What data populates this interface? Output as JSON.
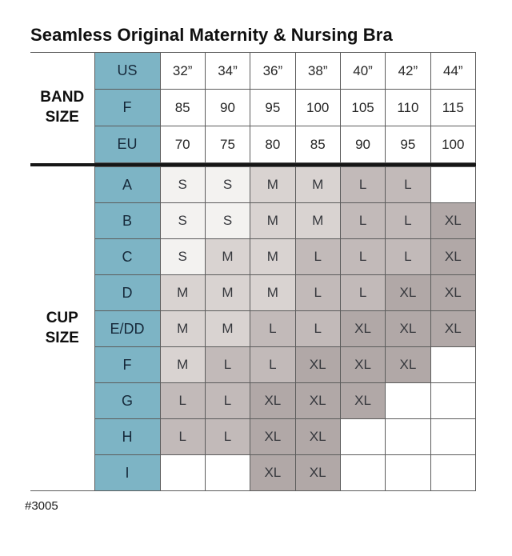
{
  "title": "Seamless Original Maternity & Nursing Bra",
  "product_code": "#3005",
  "colors": {
    "header_teal": "#7db4c5",
    "size_S": "#f3f2f0",
    "size_M": "#d9d3d1",
    "size_L": "#c2bab9",
    "size_XL": "#b1a8a7",
    "empty_cell": "#ffffff",
    "grid_line": "#5c5c5c",
    "section_divider": "#161616",
    "header_text": "#16293a"
  },
  "band_section": {
    "label": "BAND SIZE",
    "rows": [
      {
        "header": "US",
        "values": [
          "32”",
          "34”",
          "36”",
          "38”",
          "40”",
          "42”",
          "44”"
        ]
      },
      {
        "header": "F",
        "values": [
          "85",
          "90",
          "95",
          "100",
          "105",
          "110",
          "115"
        ]
      },
      {
        "header": "EU",
        "values": [
          "70",
          "75",
          "80",
          "85",
          "90",
          "95",
          "100"
        ]
      }
    ]
  },
  "cup_section": {
    "label": "CUP SIZE",
    "rows": [
      {
        "header": "A",
        "values": [
          "S",
          "S",
          "M",
          "M",
          "L",
          "L",
          ""
        ]
      },
      {
        "header": "B",
        "values": [
          "S",
          "S",
          "M",
          "M",
          "L",
          "L",
          "XL"
        ]
      },
      {
        "header": "C",
        "values": [
          "S",
          "M",
          "M",
          "L",
          "L",
          "L",
          "XL"
        ]
      },
      {
        "header": "D",
        "values": [
          "M",
          "M",
          "M",
          "L",
          "L",
          "XL",
          "XL"
        ]
      },
      {
        "header": "E/DD",
        "values": [
          "M",
          "M",
          "L",
          "L",
          "XL",
          "XL",
          "XL"
        ]
      },
      {
        "header": "F",
        "values": [
          "M",
          "L",
          "L",
          "XL",
          "XL",
          "XL",
          ""
        ]
      },
      {
        "header": "G",
        "values": [
          "L",
          "L",
          "XL",
          "XL",
          "XL",
          "",
          ""
        ]
      },
      {
        "header": "H",
        "values": [
          "L",
          "L",
          "XL",
          "XL",
          "",
          "",
          ""
        ]
      },
      {
        "header": "I",
        "values": [
          "",
          "",
          "XL",
          "XL",
          "",
          "",
          ""
        ]
      }
    ]
  }
}
